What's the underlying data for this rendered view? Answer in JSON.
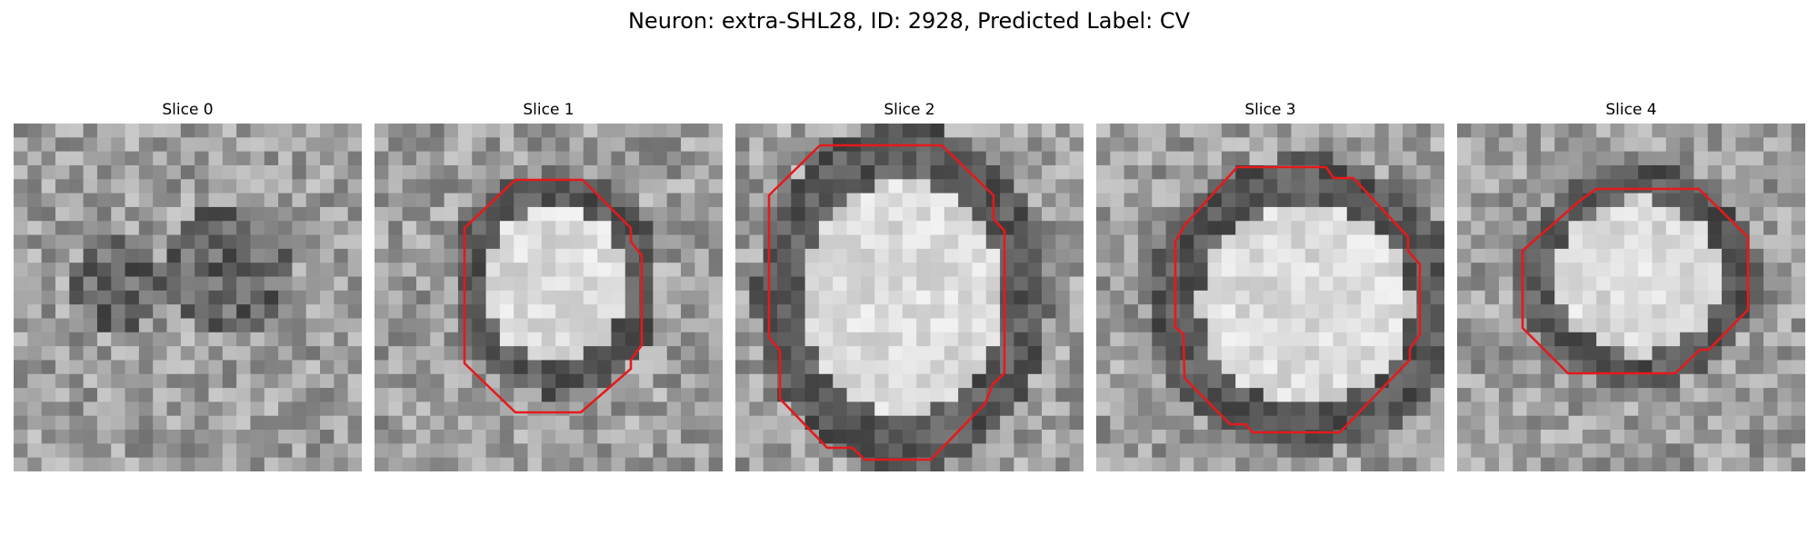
{
  "figure": {
    "title": "Neuron: extra-SHL28, ID: 2928, Predicted Label: CV"
  },
  "panels": [
    {
      "title": "Slice 0",
      "has_contour": false,
      "contour_color": "#e41a1c"
    },
    {
      "title": "Slice 1",
      "has_contour": true,
      "contour_color": "#e41a1c"
    },
    {
      "title": "Slice 2",
      "has_contour": true,
      "contour_color": "#e41a1c"
    },
    {
      "title": "Slice 3",
      "has_contour": true,
      "contour_color": "#e41a1c"
    },
    {
      "title": "Slice 4",
      "has_contour": true,
      "contour_color": "#e41a1c"
    }
  ],
  "colormap": "gray"
}
